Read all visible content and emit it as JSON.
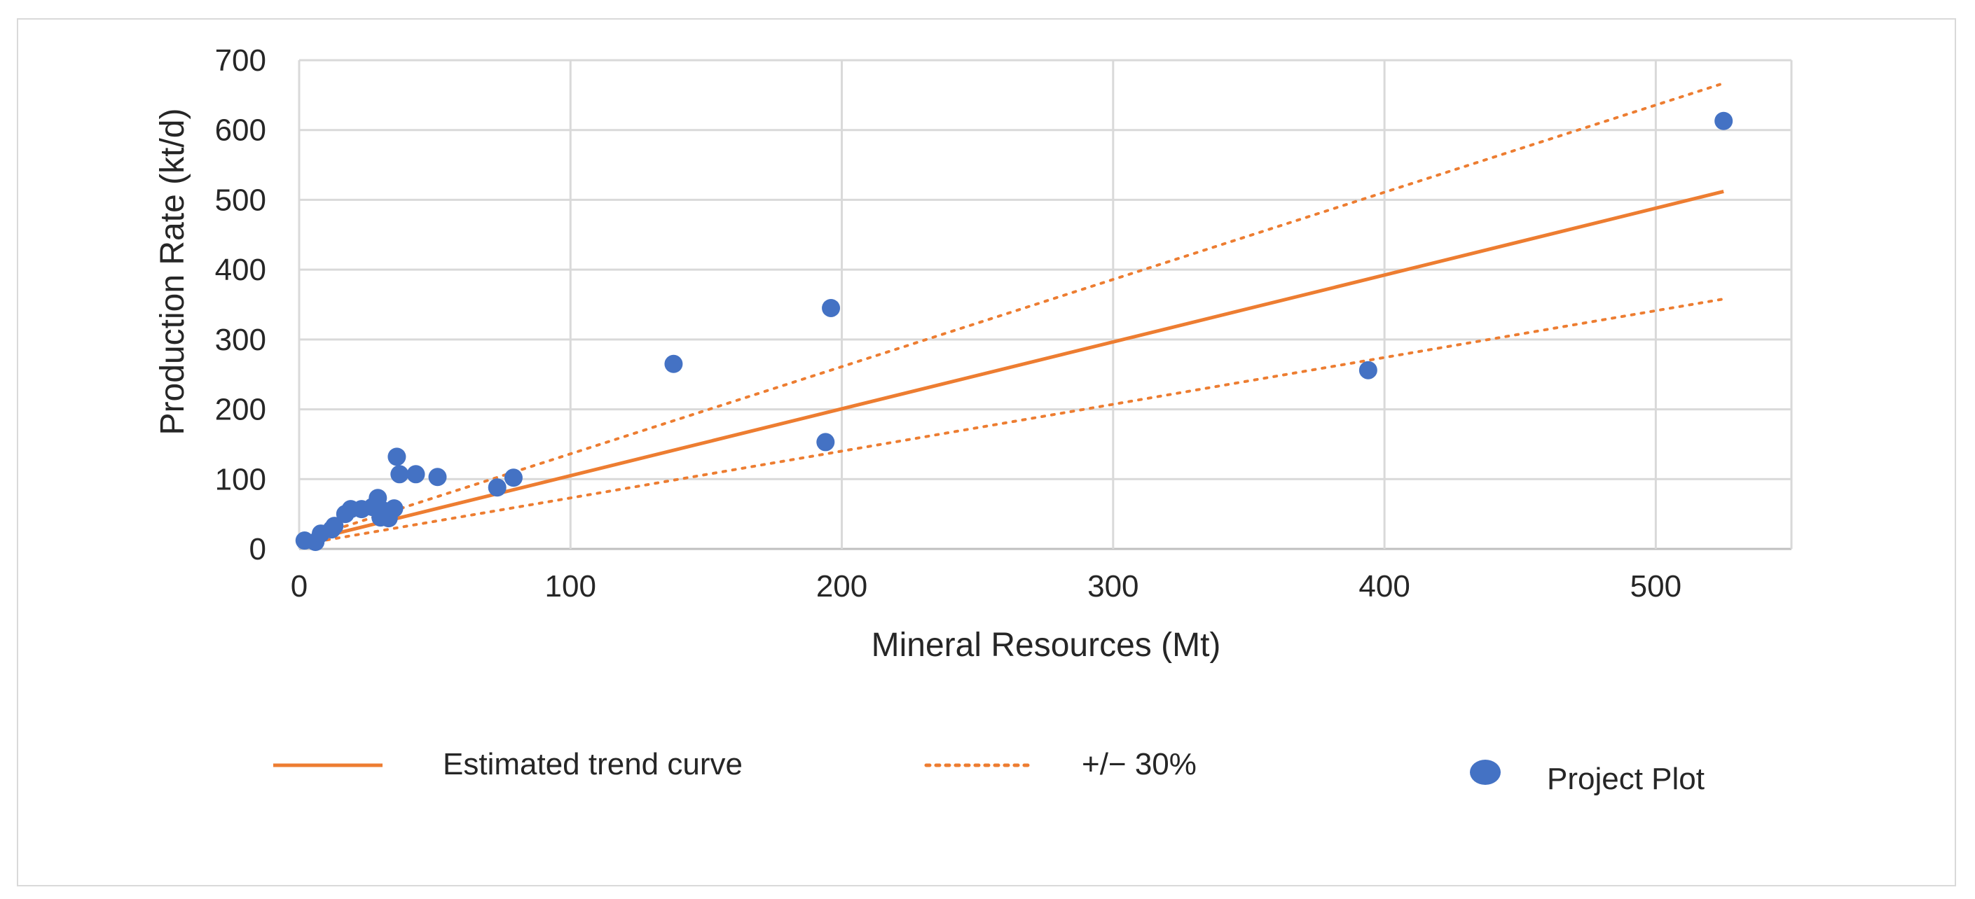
{
  "chart_data": {
    "type": "scatter",
    "title": "",
    "xlabel": "Mineral Resources (Mt)",
    "ylabel": "Production Rate (kt/d)",
    "xlim": [
      0,
      550
    ],
    "ylim": [
      0,
      700
    ],
    "xticks": [
      0,
      100,
      200,
      300,
      400,
      500
    ],
    "yticks": [
      0,
      100,
      200,
      300,
      400,
      500,
      600,
      700
    ],
    "xtick_labels": [
      "0",
      "100",
      "200",
      "300",
      "400",
      "500"
    ],
    "ytick_labels": [
      "0",
      "100",
      "200",
      "300",
      "400",
      "500",
      "600",
      "700"
    ],
    "grid": true,
    "legend_position": "bottom",
    "series": [
      {
        "name": "Estimated trend curve",
        "kind": "line",
        "style": "solid",
        "color": "#ED7D31",
        "x": [
          3,
          525
        ],
        "y": [
          12,
          512
        ]
      },
      {
        "name": "+/− 30%",
        "kind": "line",
        "style": "dotted",
        "color": "#ED7D31",
        "x": [
          3,
          525
        ],
        "y": [
          15,
          667
        ]
      },
      {
        "name": "+/− 30%",
        "kind": "line",
        "style": "dotted",
        "color": "#ED7D31",
        "x": [
          3,
          525
        ],
        "y": [
          8,
          358
        ]
      },
      {
        "name": "Project Plot",
        "kind": "scatter",
        "color": "#4472C4",
        "x": [
          2,
          6,
          8,
          12,
          13,
          17,
          19,
          23,
          27,
          29,
          30,
          31,
          33,
          35,
          36,
          37,
          43,
          51,
          73,
          79,
          138,
          194,
          196,
          394,
          525
        ],
        "y": [
          12,
          10,
          22,
          28,
          33,
          50,
          57,
          57,
          60,
          73,
          45,
          55,
          44,
          58,
          132,
          107,
          107,
          103,
          88,
          102,
          265,
          153,
          345,
          256,
          613
        ]
      }
    ],
    "legend": {
      "trend_label": "Estimated trend curve",
      "band_label": "+/− 30%",
      "points_label": "Project Plot"
    }
  }
}
